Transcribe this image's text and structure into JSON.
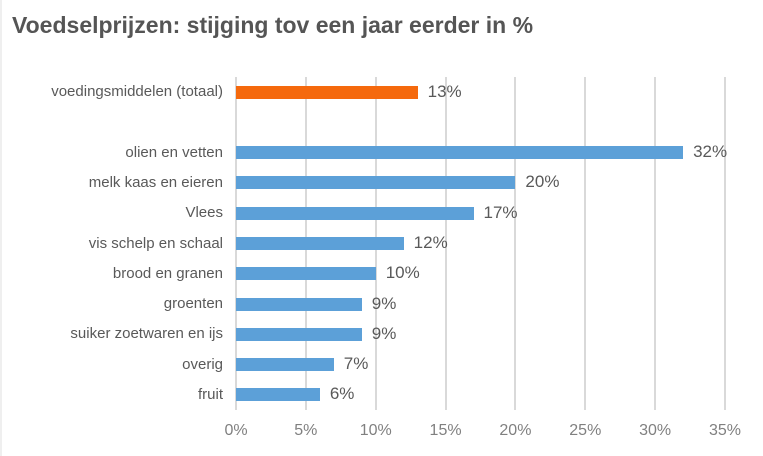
{
  "chart_data": {
    "type": "bar",
    "orientation": "horizontal",
    "title": "Voedselprijzen: stijging tov een jaar eerder in %",
    "categories": [
      "voedingsmiddelen (totaal)",
      "olien en vetten",
      "melk kaas en eieren",
      "Vlees",
      "vis schelp en schaal",
      "brood en granen",
      "groenten",
      "suiker zoetwaren en ijs",
      "overig",
      "fruit"
    ],
    "values": [
      13,
      32,
      20,
      17,
      12,
      10,
      9,
      9,
      7,
      6
    ],
    "value_labels": [
      "13%",
      "32%",
      "20%",
      "17%",
      "12%",
      "10%",
      "9%",
      "9%",
      "7%",
      "6%"
    ],
    "highlight_index": 0,
    "gap_after_index": 0,
    "x_ticks": [
      "0%",
      "5%",
      "10%",
      "15%",
      "20%",
      "25%",
      "30%",
      "35%"
    ],
    "x_tick_values": [
      0,
      5,
      10,
      15,
      20,
      25,
      30,
      35
    ],
    "xlim": [
      0,
      35
    ],
    "grid": "vertical",
    "legend": "none",
    "colors": {
      "bar_default": "#5ca0d8",
      "bar_highlight": "#f5690d",
      "gridline": "#d9d9d9",
      "title_text": "#555555",
      "category_text": "#595959",
      "value_text": "#595959",
      "axis_text": "#808080"
    }
  }
}
